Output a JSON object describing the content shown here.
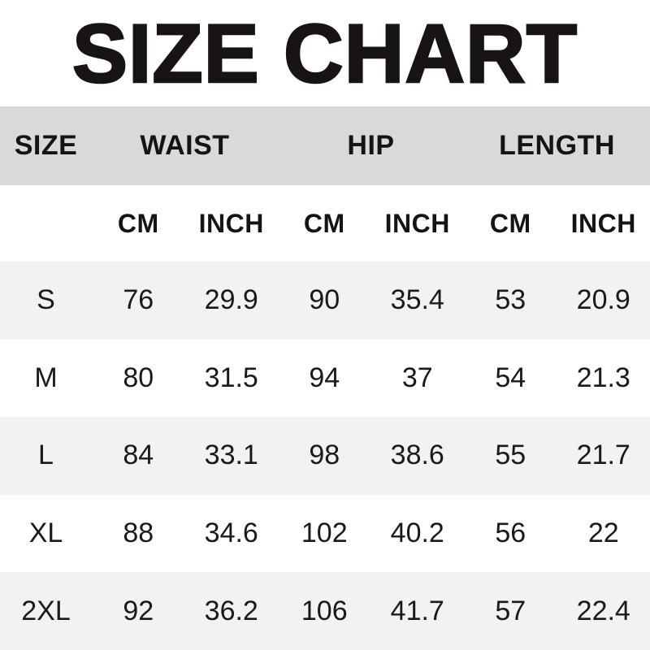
{
  "colors": {
    "header_band": "#d9d9d9",
    "row_shaded": "#f2f2f2",
    "row_plain": "#ffffff",
    "text": "#1a1a1a",
    "title_text": "#181314",
    "background": "#ffffff"
  },
  "chart_data": {
    "type": "table",
    "title": "SIZE CHART",
    "column_groups": [
      {
        "label": "SIZE",
        "span": 1
      },
      {
        "label": "WAIST",
        "span": 2
      },
      {
        "label": "HIP",
        "span": 2
      },
      {
        "label": "LENGTH",
        "span": 2
      }
    ],
    "unit_row": [
      "",
      "CM",
      "INCH",
      "CM",
      "INCH",
      "CM",
      "INCH"
    ],
    "columns": [
      "SIZE",
      "WAIST CM",
      "WAIST INCH",
      "HIP CM",
      "HIP INCH",
      "LENGTH CM",
      "LENGTH INCH"
    ],
    "rows": [
      [
        "S",
        "76",
        "29.9",
        "90",
        "35.4",
        "53",
        "20.9"
      ],
      [
        "M",
        "80",
        "31.5",
        "94",
        "37",
        "54",
        "21.3"
      ],
      [
        "L",
        "84",
        "33.1",
        "98",
        "38.6",
        "55",
        "21.7"
      ],
      [
        "XL",
        "88",
        "34.6",
        "102",
        "40.2",
        "56",
        "22"
      ],
      [
        "2XL",
        "92",
        "36.2",
        "106",
        "41.7",
        "57",
        "22.4"
      ]
    ]
  }
}
